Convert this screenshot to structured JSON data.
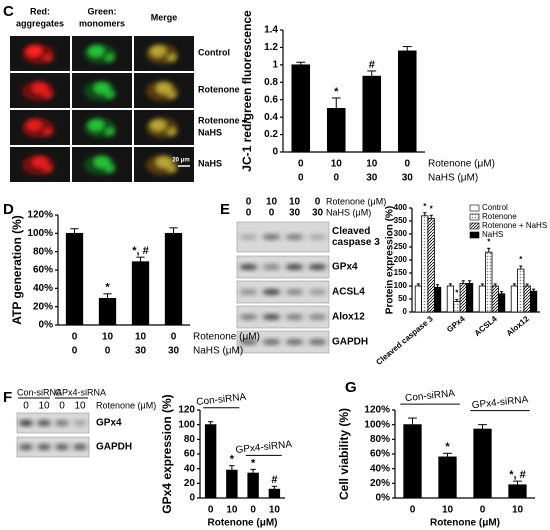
{
  "micrograph": {
    "columns": [
      [
        "Red:",
        "aggregates"
      ],
      [
        "Green:",
        "monomers"
      ],
      [
        "Merge"
      ]
    ],
    "rows": [
      [
        "Control"
      ],
      [
        "Rotenone"
      ],
      [
        "Rotenone +",
        "NaHS"
      ],
      [
        "NaHS"
      ]
    ],
    "scale_bar": "20 μm"
  },
  "blot_e": {
    "lanes_rotenone": [
      "0",
      "10",
      "10",
      "0"
    ],
    "lanes_nahs": [
      "0",
      "0",
      "30",
      "30"
    ],
    "row_labels": [
      "Rotenone (μM)",
      "NaHS (μM)"
    ],
    "bands": [
      [
        "Cleaved",
        "caspase 3"
      ],
      [
        "GPx4"
      ],
      [
        "ACSL4"
      ],
      [
        "Alox12"
      ],
      [
        "GAPDH"
      ]
    ]
  },
  "blot_f": {
    "groups": [
      "Con-siRNA",
      "GPx4-siRNA"
    ],
    "lanes": [
      "0",
      "10",
      "0",
      "10"
    ],
    "lane_label": "Rotenone (μM)",
    "bands": [
      "GPx4",
      "GAPDH"
    ]
  },
  "chart_data": [
    {
      "type": "bar",
      "panel": "C",
      "y_label": "JC-1 red/green fluorescence",
      "categories": [
        "0",
        "10",
        "10",
        "0"
      ],
      "categories_2": [
        "0",
        "0",
        "30",
        "30"
      ],
      "category_labels": [
        "Rotenone (μM)",
        "NaHS (μM)"
      ],
      "values": [
        1.0,
        0.5,
        0.87,
        1.16
      ],
      "errors": [
        0.03,
        0.12,
        0.06,
        0.05
      ],
      "value_annotations": [
        null,
        "*",
        "#",
        null
      ],
      "color": "#000000",
      "ylim": [
        0,
        1.4
      ],
      "yticks": [
        0,
        0.2,
        0.4,
        0.6,
        0.8,
        1,
        1.2,
        1.4
      ]
    },
    {
      "type": "bar",
      "panel": "D",
      "y_label": "ATP generation (%)",
      "categories": [
        "0",
        "10",
        "10",
        "0"
      ],
      "categories_2": [
        "0",
        "0",
        "30",
        "30"
      ],
      "category_labels": [
        "Rotenone (μM)",
        "NaHS (μM)"
      ],
      "values": [
        100,
        29,
        69,
        100
      ],
      "errors": [
        5,
        5,
        5,
        6
      ],
      "value_annotations": [
        null,
        "*",
        "*, #",
        null
      ],
      "color": "#000000",
      "ylim": [
        0,
        120
      ],
      "yticks": [
        {
          "value": 0,
          "label": "0%"
        },
        {
          "value": 20,
          "label": "20%"
        },
        {
          "value": 40,
          "label": "40%"
        },
        {
          "value": 60,
          "label": "60%"
        },
        {
          "value": 80,
          "label": "80%"
        },
        {
          "value": 100,
          "label": "100%"
        },
        {
          "value": 120,
          "label": "120%"
        }
      ]
    },
    {
      "type": "grouped_bar",
      "panel": "E",
      "y_label": "Protein expression (%)",
      "categories": [
        "Cleaved caspase 3",
        "GPx4",
        "ACSL4",
        "Alox12"
      ],
      "series": [
        {
          "name": "Control",
          "color": "#ffffff",
          "pattern": null,
          "values": [
            100,
            100,
            100,
            100
          ],
          "errors": [
            8,
            8,
            8,
            8
          ]
        },
        {
          "name": "Rotenone",
          "color": "#808080",
          "pattern": "dots",
          "values": [
            370,
            40,
            230,
            165
          ],
          "errors": [
            12,
            8,
            15,
            12
          ],
          "annotations": [
            "*",
            "*",
            "*",
            "*"
          ]
        },
        {
          "name": "Rotenone + NaHS",
          "color": "#000000",
          "pattern": "hatch",
          "values": [
            360,
            110,
            100,
            100
          ],
          "errors": [
            12,
            10,
            8,
            8
          ],
          "annotations": [
            "*",
            null,
            null,
            null
          ]
        },
        {
          "name": "NaHS",
          "color": "#000000",
          "pattern": null,
          "values": [
            95,
            110,
            70,
            80
          ],
          "errors": [
            10,
            10,
            8,
            8
          ]
        }
      ],
      "ylim": [
        0,
        400
      ],
      "yticks": [
        0,
        50,
        100,
        150,
        200,
        250,
        300,
        350,
        400
      ]
    },
    {
      "type": "bar",
      "panel": "F",
      "y_label": "GPx4 expression (%)",
      "x_label": "Rotenone (μM)",
      "groups": [
        "Con-siRNA",
        "GPx4-siRNA"
      ],
      "categories": [
        "0",
        "10",
        "0",
        "10"
      ],
      "values": [
        100,
        38,
        34,
        12
      ],
      "errors": [
        4,
        6,
        5,
        4
      ],
      "value_annotations": [
        null,
        "*",
        "*",
        "#"
      ],
      "color": "#000000",
      "ylim": [
        0,
        120
      ],
      "yticks": [
        0,
        20,
        40,
        60,
        80,
        100,
        120
      ]
    },
    {
      "type": "bar",
      "panel": "G",
      "y_label": "Cell viability (%)",
      "x_label": "Rotenone (μM)",
      "groups": [
        "Con-siRNA",
        "GPx4-siRNA"
      ],
      "categories": [
        "0",
        "10",
        "0",
        "10"
      ],
      "values": [
        100,
        56,
        94,
        18
      ],
      "errors": [
        9,
        5,
        6,
        5
      ],
      "value_annotations": [
        null,
        "*",
        null,
        "*, #"
      ],
      "color": "#000000",
      "ylim": [
        0,
        120
      ],
      "yticks": [
        {
          "value": 0,
          "label": "0%"
        },
        {
          "value": 20,
          "label": "20%"
        },
        {
          "value": 40,
          "label": "40%"
        },
        {
          "value": 60,
          "label": "60%"
        },
        {
          "value": 80,
          "label": "80%"
        },
        {
          "value": 100,
          "label": "100%"
        },
        {
          "value": 120,
          "label": "120%"
        }
      ]
    }
  ]
}
